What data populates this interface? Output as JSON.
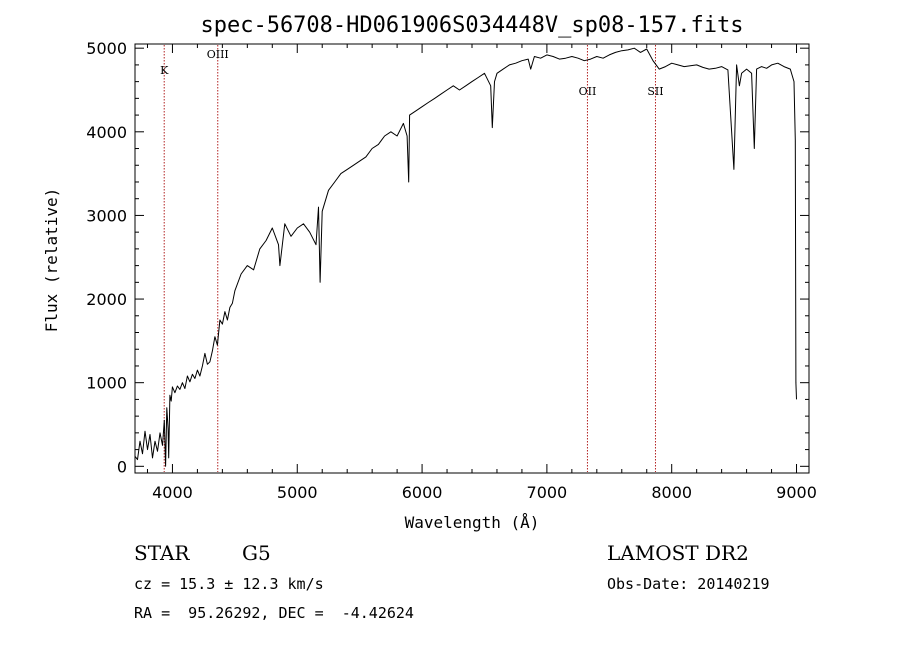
{
  "chart_data": {
    "type": "line",
    "title": "spec-56708-HD061906S034448V_sp08-157.fits",
    "xlabel": "Wavelength (Å)",
    "ylabel": "Flux (relative)",
    "xlim": [
      3700,
      9100
    ],
    "ylim": [
      -80,
      5050
    ],
    "xticks": [
      4000,
      5000,
      6000,
      7000,
      8000,
      9000
    ],
    "yticks": [
      0,
      1000,
      2000,
      3000,
      4000,
      5000
    ],
    "xtick_labels": [
      "4000",
      "5000",
      "6000",
      "7000",
      "8000",
      "9000"
    ],
    "ytick_labels": [
      "0",
      "1000",
      "2000",
      "3000",
      "4000",
      "5000"
    ],
    "series": [
      {
        "x": [
          3700,
          3720,
          3740,
          3760,
          3780,
          3800,
          3820,
          3840,
          3860,
          3880,
          3900,
          3920,
          3935,
          3945,
          3955,
          3965,
          3970,
          3980,
          3990,
          4000,
          4020,
          4040,
          4060,
          4080,
          4100,
          4120,
          4140,
          4160,
          4180,
          4200,
          4220,
          4240,
          4260,
          4280,
          4300,
          4320,
          4340,
          4360,
          4380,
          4400,
          4420,
          4440,
          4460,
          4480,
          4500,
          4550,
          4600,
          4650,
          4700,
          4750,
          4800,
          4850,
          4861,
          4900,
          4950,
          5000,
          5050,
          5100,
          5150,
          5170,
          5183,
          5200,
          5250,
          5300,
          5350,
          5400,
          5450,
          5500,
          5550,
          5600,
          5650,
          5700,
          5750,
          5800,
          5850,
          5880,
          5893,
          5900,
          5950,
          6000,
          6050,
          6100,
          6150,
          6200,
          6250,
          6300,
          6350,
          6400,
          6450,
          6500,
          6550,
          6563,
          6580,
          6600,
          6650,
          6700,
          6750,
          6800,
          6850,
          6870,
          6900,
          6950,
          7000,
          7050,
          7100,
          7150,
          7200,
          7250,
          7300,
          7350,
          7400,
          7450,
          7500,
          7550,
          7600,
          7650,
          7700,
          7750,
          7800,
          7850,
          7900,
          7950,
          8000,
          8050,
          8100,
          8150,
          8200,
          8250,
          8300,
          8350,
          8400,
          8450,
          8498,
          8520,
          8542,
          8560,
          8600,
          8640,
          8662,
          8680,
          8720,
          8760,
          8800,
          8850,
          8900,
          8950,
          8980,
          8990,
          8995,
          9000
        ],
        "y": [
          120,
          80,
          300,
          150,
          420,
          200,
          380,
          100,
          300,
          180,
          400,
          250,
          550,
          0,
          700,
          450,
          100,
          850,
          780,
          950,
          880,
          960,
          920,
          1000,
          930,
          1080,
          1010,
          1100,
          1050,
          1150,
          1080,
          1200,
          1350,
          1220,
          1250,
          1380,
          1550,
          1450,
          1750,
          1700,
          1850,
          1750,
          1900,
          1950,
          2100,
          2300,
          2400,
          2350,
          2600,
          2700,
          2850,
          2650,
          2400,
          2900,
          2750,
          2850,
          2900,
          2800,
          2650,
          3100,
          2200,
          3050,
          3300,
          3400,
          3500,
          3550,
          3600,
          3650,
          3700,
          3800,
          3850,
          3950,
          4000,
          3950,
          4100,
          3950,
          3400,
          4200,
          4250,
          4300,
          4350,
          4400,
          4450,
          4500,
          4550,
          4500,
          4550,
          4600,
          4650,
          4700,
          4550,
          4050,
          4600,
          4700,
          4750,
          4800,
          4820,
          4850,
          4870,
          4750,
          4900,
          4880,
          4920,
          4900,
          4870,
          4880,
          4900,
          4880,
          4850,
          4870,
          4900,
          4880,
          4920,
          4950,
          4970,
          4980,
          5000,
          4950,
          4990,
          4850,
          4750,
          4780,
          4820,
          4800,
          4780,
          4790,
          4800,
          4770,
          4750,
          4760,
          4780,
          4740,
          3550,
          4800,
          4550,
          4700,
          4750,
          4700,
          3800,
          4750,
          4780,
          4760,
          4800,
          4820,
          4780,
          4750,
          4600,
          3900,
          1000,
          800
        ]
      }
    ],
    "lines": [
      {
        "name": "K",
        "wavelength": 3934
      },
      {
        "name": "OIII",
        "wavelength": 4363
      },
      {
        "name": "OII",
        "wavelength": 7325
      },
      {
        "name": "SII",
        "wavelength": 7870
      }
    ],
    "grid": false
  },
  "info": {
    "class": "STAR",
    "subclass": "G5",
    "survey": "LAMOST DR2",
    "cz": "cz = 15.3 ± 12.3 km/s",
    "obs_date": "Obs-Date: 20140219",
    "radec": "RA =  95.26292, DEC =  -4.42624"
  },
  "colors": {
    "spectrum": "#000000",
    "line_markers": "#b22222"
  }
}
